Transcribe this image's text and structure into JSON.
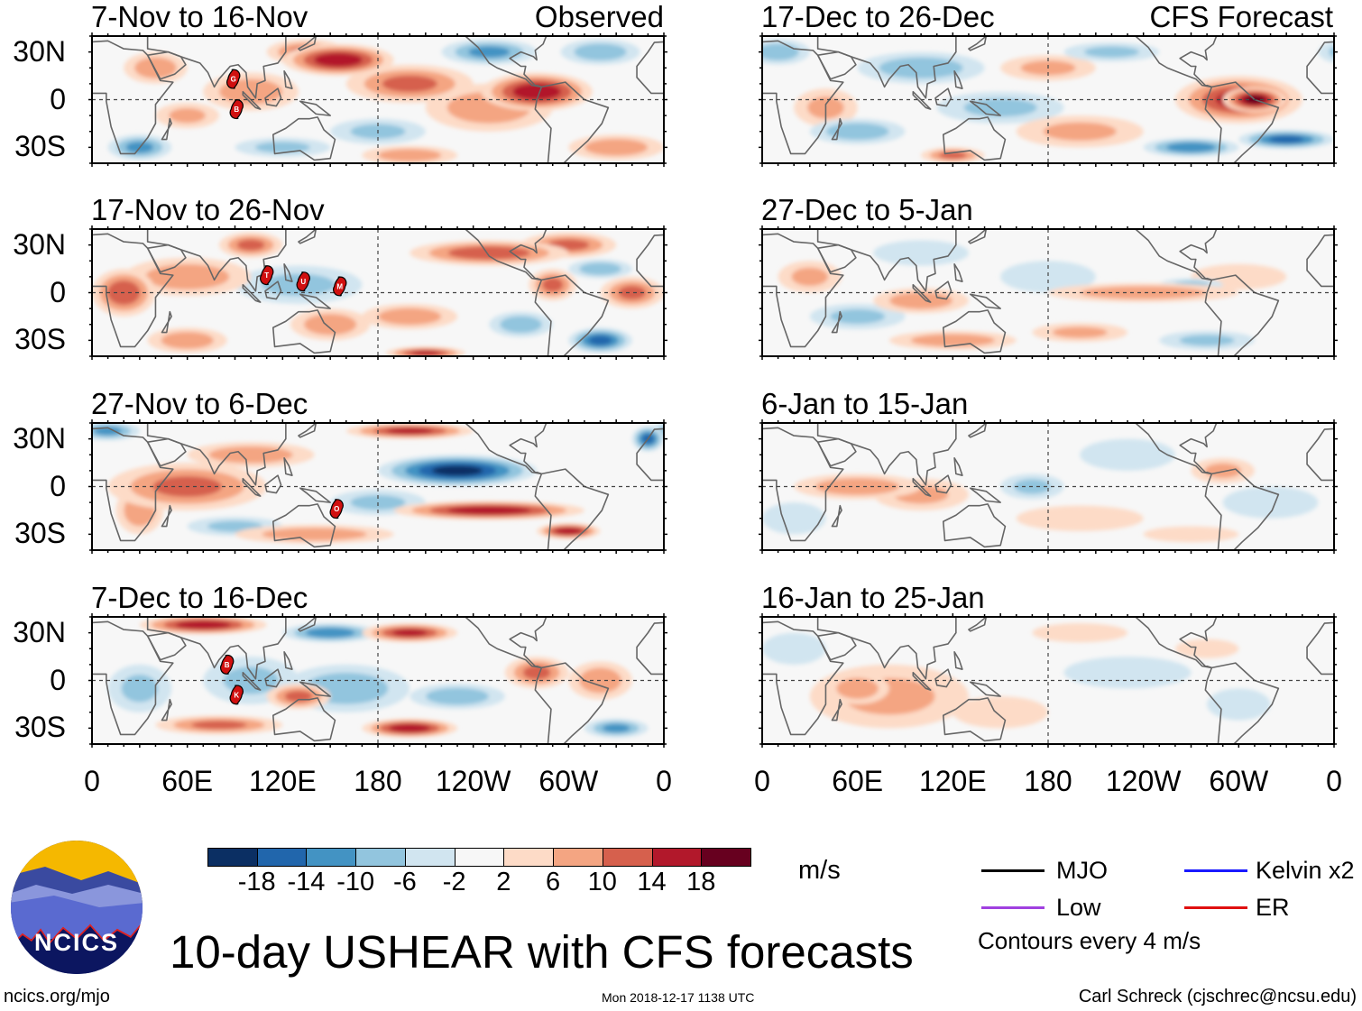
{
  "header": {
    "observed_label": "Observed",
    "forecast_label": "CFS Forecast"
  },
  "lat_labels": [
    "30N",
    "0",
    "30S"
  ],
  "lon_labels": [
    "0",
    "60E",
    "120E",
    "180",
    "120W",
    "60W",
    "0"
  ],
  "panels": [
    {
      "title": "7-Nov to 16-Nov",
      "cyclones": [
        {
          "id": "G",
          "lon": 89,
          "lat": 13
        },
        {
          "id": "B",
          "lon": 91,
          "lat": -6
        }
      ],
      "anomaly_centers": [
        [
          155,
          25,
          35,
          10,
          16
        ],
        [
          135,
          30,
          25,
          8,
          10
        ],
        [
          200,
          10,
          40,
          12,
          10
        ],
        [
          280,
          5,
          35,
          12,
          16
        ],
        [
          250,
          -5,
          40,
          15,
          8
        ],
        [
          100,
          5,
          30,
          12,
          8
        ],
        [
          60,
          -10,
          20,
          8,
          6
        ],
        [
          30,
          -30,
          20,
          8,
          -10
        ],
        [
          250,
          30,
          30,
          8,
          -10
        ],
        [
          320,
          30,
          25,
          8,
          -8
        ],
        [
          180,
          -20,
          30,
          8,
          -6
        ],
        [
          40,
          20,
          20,
          10,
          8
        ],
        [
          330,
          -30,
          30,
          8,
          8
        ],
        [
          200,
          -35,
          30,
          6,
          8
        ],
        [
          120,
          -30,
          30,
          6,
          -6
        ]
      ]
    },
    {
      "title": "17-Nov to 26-Nov",
      "cyclones": [
        {
          "id": "T",
          "lon": 110,
          "lat": 11
        },
        {
          "id": "U",
          "lon": 133,
          "lat": 7
        },
        {
          "id": "M",
          "lon": 156,
          "lat": 4
        }
      ],
      "anomaly_centers": [
        [
          20,
          0,
          20,
          15,
          12
        ],
        [
          60,
          10,
          40,
          12,
          8
        ],
        [
          100,
          30,
          20,
          8,
          10
        ],
        [
          250,
          25,
          50,
          8,
          12
        ],
        [
          300,
          30,
          30,
          8,
          10
        ],
        [
          340,
          0,
          20,
          10,
          10
        ],
        [
          200,
          -15,
          30,
          8,
          8
        ],
        [
          210,
          -38,
          25,
          4,
          14
        ],
        [
          320,
          -30,
          20,
          8,
          -14
        ],
        [
          130,
          5,
          40,
          12,
          -6
        ],
        [
          150,
          -20,
          25,
          10,
          8
        ],
        [
          270,
          -20,
          20,
          8,
          -8
        ],
        [
          320,
          15,
          20,
          6,
          -8
        ],
        [
          60,
          -30,
          25,
          8,
          8
        ],
        [
          290,
          5,
          15,
          10,
          10
        ]
      ]
    },
    {
      "title": "27-Nov to 6-Dec",
      "cyclones": [
        {
          "id": "O",
          "lon": 154,
          "lat": -14
        }
      ],
      "anomaly_centers": [
        [
          230,
          10,
          50,
          10,
          -18
        ],
        [
          250,
          -15,
          60,
          6,
          16
        ],
        [
          60,
          0,
          50,
          15,
          10
        ],
        [
          100,
          20,
          40,
          8,
          8
        ],
        [
          200,
          35,
          40,
          5,
          14
        ],
        [
          10,
          35,
          20,
          6,
          -10
        ],
        [
          350,
          30,
          10,
          8,
          -14
        ],
        [
          140,
          -30,
          50,
          6,
          8
        ],
        [
          180,
          -10,
          30,
          8,
          -6
        ],
        [
          300,
          -28,
          20,
          5,
          16
        ],
        [
          30,
          -15,
          15,
          15,
          8
        ],
        [
          90,
          -25,
          30,
          6,
          -6
        ]
      ]
    },
    {
      "title": "7-Dec to 16-Dec",
      "cyclones": [
        {
          "id": "B",
          "lon": 85,
          "lat": 10
        },
        {
          "id": "K",
          "lon": 91,
          "lat": -9
        }
      ],
      "anomaly_centers": [
        [
          70,
          35,
          40,
          6,
          16
        ],
        [
          150,
          30,
          30,
          6,
          -12
        ],
        [
          200,
          30,
          30,
          6,
          14
        ],
        [
          160,
          -5,
          40,
          15,
          -8
        ],
        [
          100,
          0,
          30,
          15,
          -6
        ],
        [
          230,
          -10,
          30,
          8,
          -8
        ],
        [
          200,
          -30,
          30,
          6,
          16
        ],
        [
          80,
          -28,
          40,
          6,
          10
        ],
        [
          280,
          5,
          20,
          10,
          10
        ],
        [
          320,
          0,
          20,
          12,
          8
        ],
        [
          30,
          -5,
          20,
          15,
          -6
        ],
        [
          330,
          -30,
          20,
          6,
          -10
        ],
        [
          130,
          -10,
          20,
          8,
          10
        ]
      ]
    },
    {
      "title": "17-Dec to 26-Dec",
      "cyclones": [],
      "anomaly_centers": [
        [
          300,
          0,
          40,
          15,
          14
        ],
        [
          310,
          0,
          20,
          8,
          18
        ],
        [
          330,
          -25,
          30,
          6,
          -14
        ],
        [
          270,
          -30,
          30,
          6,
          -12
        ],
        [
          100,
          20,
          40,
          10,
          -8
        ],
        [
          150,
          -5,
          40,
          10,
          -6
        ],
        [
          60,
          -20,
          30,
          8,
          -8
        ],
        [
          180,
          20,
          30,
          8,
          6
        ],
        [
          200,
          -20,
          40,
          10,
          6
        ],
        [
          10,
          30,
          20,
          8,
          -8
        ],
        [
          220,
          30,
          30,
          6,
          -6
        ],
        [
          40,
          -5,
          20,
          12,
          6
        ],
        [
          120,
          -35,
          20,
          5,
          10
        ]
      ]
    },
    {
      "title": "27-Dec to 5-Jan",
      "cyclones": [],
      "anomaly_centers": [
        [
          240,
          0,
          60,
          6,
          8
        ],
        [
          270,
          5,
          20,
          4,
          -6
        ],
        [
          100,
          -5,
          30,
          8,
          8
        ],
        [
          120,
          -30,
          40,
          6,
          8
        ],
        [
          60,
          -15,
          30,
          8,
          -6
        ],
        [
          180,
          10,
          30,
          10,
          -4
        ],
        [
          300,
          10,
          30,
          8,
          4
        ],
        [
          280,
          -30,
          30,
          6,
          -6
        ],
        [
          200,
          -25,
          30,
          6,
          6
        ],
        [
          30,
          10,
          20,
          10,
          6
        ],
        [
          100,
          25,
          30,
          8,
          -4
        ]
      ]
    },
    {
      "title": "6-Jan to 15-Jan",
      "cyclones": [],
      "anomaly_centers": [
        [
          60,
          0,
          40,
          8,
          8
        ],
        [
          100,
          -5,
          30,
          10,
          6
        ],
        [
          170,
          0,
          20,
          8,
          -6
        ],
        [
          230,
          20,
          30,
          10,
          -4
        ],
        [
          290,
          10,
          20,
          8,
          6
        ],
        [
          320,
          -10,
          30,
          10,
          -4
        ],
        [
          200,
          -20,
          40,
          8,
          4
        ],
        [
          20,
          -20,
          20,
          10,
          -4
        ],
        [
          270,
          -30,
          30,
          5,
          4
        ]
      ]
    },
    {
      "title": "16-Jan to 25-Jan",
      "cyclones": [],
      "anomaly_centers": [
        [
          80,
          -10,
          50,
          20,
          6
        ],
        [
          60,
          -5,
          20,
          10,
          8
        ],
        [
          150,
          -20,
          30,
          10,
          4
        ],
        [
          230,
          5,
          40,
          10,
          -4
        ],
        [
          300,
          -15,
          20,
          10,
          -4
        ],
        [
          20,
          20,
          20,
          10,
          -4
        ],
        [
          200,
          30,
          30,
          6,
          4
        ],
        [
          280,
          20,
          20,
          6,
          4
        ]
      ]
    }
  ],
  "colorbar": {
    "labels": [
      "-18",
      "-14",
      "-10",
      "-6",
      "-2",
      "2",
      "6",
      "10",
      "14",
      "18"
    ],
    "colors": [
      "#0b2f63",
      "#2166ac",
      "#4393c3",
      "#92c5de",
      "#d1e5f0",
      "#f7f7f7",
      "#fddbc7",
      "#f4a582",
      "#d6604d",
      "#b2182b",
      "#67001f"
    ],
    "units": "m/s"
  },
  "legend": {
    "items": [
      {
        "label": "MJO",
        "color": "#000000"
      },
      {
        "label": "Kelvin x2",
        "color": "#1a1aff"
      },
      {
        "label": "Low",
        "color": "#a040e0"
      },
      {
        "label": "ER",
        "color": "#e01010"
      }
    ],
    "contours_note": "Contours every 4 m/s"
  },
  "logo": {
    "text": "NCICS"
  },
  "footer": {
    "title": "10-day USHEAR with CFS forecasts",
    "url": "ncics.org/mjo",
    "timestamp": "Mon 2018-12-17 1138 UTC",
    "credit": "Carl Schreck (cjschrec@ncsu.edu)"
  }
}
